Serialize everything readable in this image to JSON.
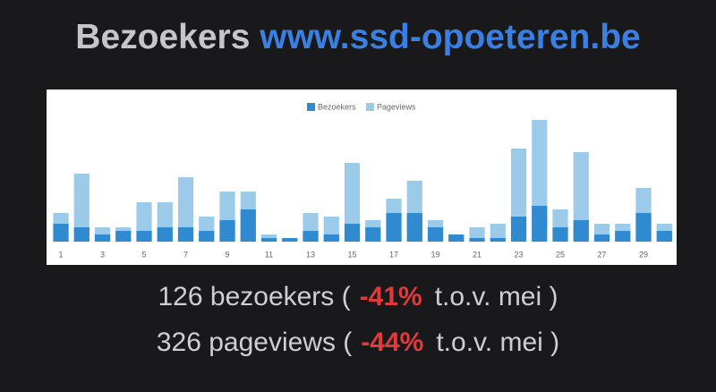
{
  "header": {
    "label": "Bezoekers",
    "site": "www.ssd-opoeteren.be"
  },
  "chart_data": {
    "type": "bar",
    "categories": [
      "1",
      null,
      "3",
      null,
      "5",
      null,
      "7",
      null,
      "9",
      null,
      "11",
      null,
      "13",
      null,
      "15",
      null,
      "17",
      null,
      "19",
      null,
      "21",
      null,
      "23",
      null,
      "25",
      null,
      "27",
      null,
      "29",
      null
    ],
    "series": [
      {
        "name": "Bezoekers",
        "color": "#2f8ad0",
        "values": [
          5,
          4,
          2,
          3,
          3,
          4,
          4,
          3,
          6,
          9,
          1,
          1,
          3,
          2,
          5,
          4,
          8,
          8,
          4,
          2,
          1,
          1,
          7,
          10,
          4,
          6,
          2,
          3,
          8,
          3
        ]
      },
      {
        "name": "Pageviews",
        "color": "#9ccbea",
        "values": [
          8,
          19,
          4,
          4,
          11,
          11,
          18,
          7,
          14,
          14,
          2,
          1,
          8,
          7,
          22,
          6,
          12,
          17,
          6,
          2,
          4,
          5,
          26,
          34,
          9,
          25,
          5,
          5,
          15,
          5
        ]
      }
    ],
    "ylim": [
      0,
      40
    ],
    "legend": "top",
    "overlap": true
  },
  "summary": [
    {
      "before": "126 bezoekers (",
      "change": "-41%",
      "after": "t.o.v. mei )"
    },
    {
      "before": "326 pageviews (",
      "change": "-44%",
      "after": "t.o.v. mei )"
    }
  ]
}
